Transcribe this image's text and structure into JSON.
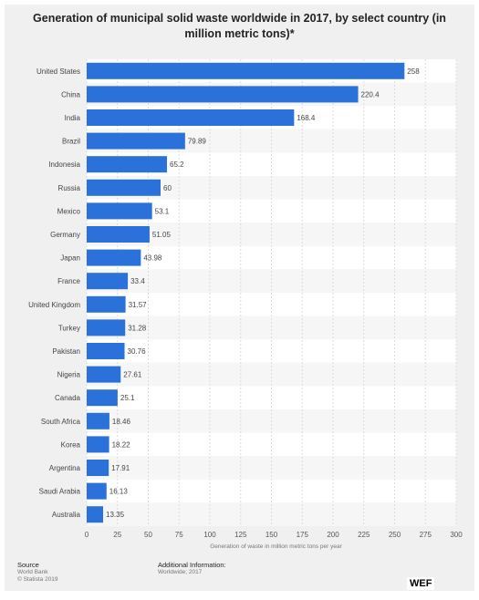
{
  "chart_data": {
    "type": "bar",
    "orientation": "horizontal",
    "title": "Generation of municipal solid waste worldwide in 2017, by select country (in million metric tons)*",
    "xlabel": "Generation of waste in million metric tons per year",
    "categories": [
      "United States",
      "China",
      "India",
      "Brazil",
      "Indonesia",
      "Russia",
      "Mexico",
      "Germany",
      "Japan",
      "France",
      "United Kingdom",
      "Turkey",
      "Pakistan",
      "Nigeria",
      "Canada",
      "South Africa",
      "Korea",
      "Argentina",
      "Saudi Arabia",
      "Australia"
    ],
    "values": [
      258,
      220.4,
      168.4,
      79.89,
      65.2,
      60,
      53.1,
      51.05,
      43.98,
      33.4,
      31.57,
      31.28,
      30.76,
      27.61,
      25.1,
      18.46,
      18.22,
      17.91,
      16.13,
      13.35
    ],
    "value_labels": [
      "258",
      "220.4",
      "168.4",
      "79.89",
      "65.2",
      "60",
      "53.1",
      "51.05",
      "43.98",
      "33.4",
      "31.57",
      "31.28",
      "30.76",
      "27.61",
      "25.1",
      "18.46",
      "18.22",
      "17.91",
      "16.13",
      "13.35"
    ],
    "xlim": [
      0,
      300
    ],
    "xticks": [
      0,
      25,
      50,
      75,
      100,
      125,
      150,
      175,
      200,
      225,
      250,
      275,
      300
    ],
    "bar_color": "#2a72d9",
    "grid": true
  },
  "footer": {
    "source_label": "Source",
    "source_lines": [
      "World Bank",
      "© Statista 2019"
    ],
    "info_label": "Additional Information:",
    "info_lines": [
      "Worldwide; 2017"
    ],
    "logo": "WEF"
  }
}
